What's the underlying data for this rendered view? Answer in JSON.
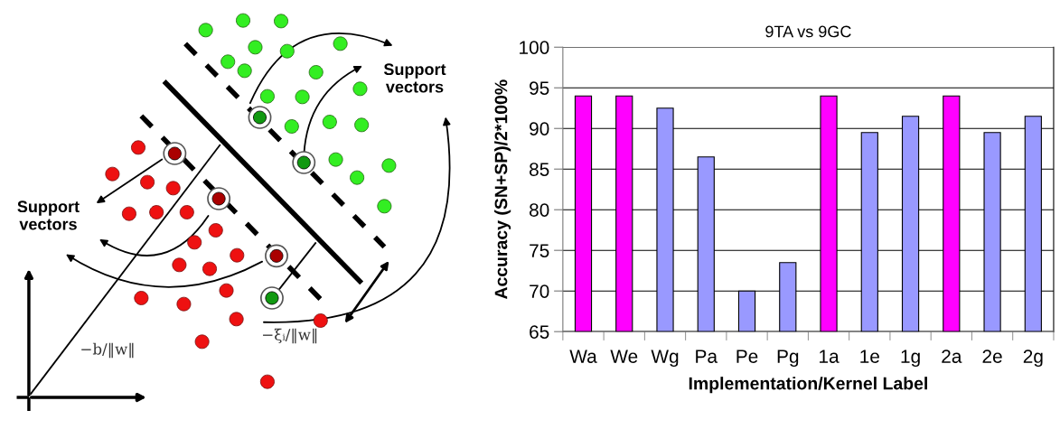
{
  "chart_data": [
    {
      "type": "other",
      "annotations": [
        "Support vectors",
        "Support vectors",
        "−b/‖w‖",
        "−ξᵢ/‖w‖"
      ]
    },
    {
      "type": "bar",
      "title": "9TA vs 9GC",
      "xlabel": "Implementation/Kernel Label",
      "ylabel": "Accuracy (SN+SP)/2*100%",
      "categories": [
        "Wa",
        "We",
        "Wg",
        "Pa",
        "Pe",
        "Pg",
        "1a",
        "1e",
        "1g",
        "2a",
        "2e",
        "2g"
      ],
      "values": [
        94,
        94,
        92.5,
        86.5,
        70,
        73.5,
        94,
        89.5,
        91.5,
        94,
        89.5,
        91.5
      ],
      "colors": [
        "#ff00ff",
        "#ff00ff",
        "#9999ff",
        "#9999ff",
        "#9999ff",
        "#9999ff",
        "#ff00ff",
        "#9999ff",
        "#9999ff",
        "#ff00ff",
        "#9999ff",
        "#9999ff"
      ],
      "ylim": [
        65,
        100
      ],
      "yticks": [
        65,
        70,
        75,
        80,
        85,
        90,
        95,
        100
      ],
      "grid": "y"
    }
  ]
}
